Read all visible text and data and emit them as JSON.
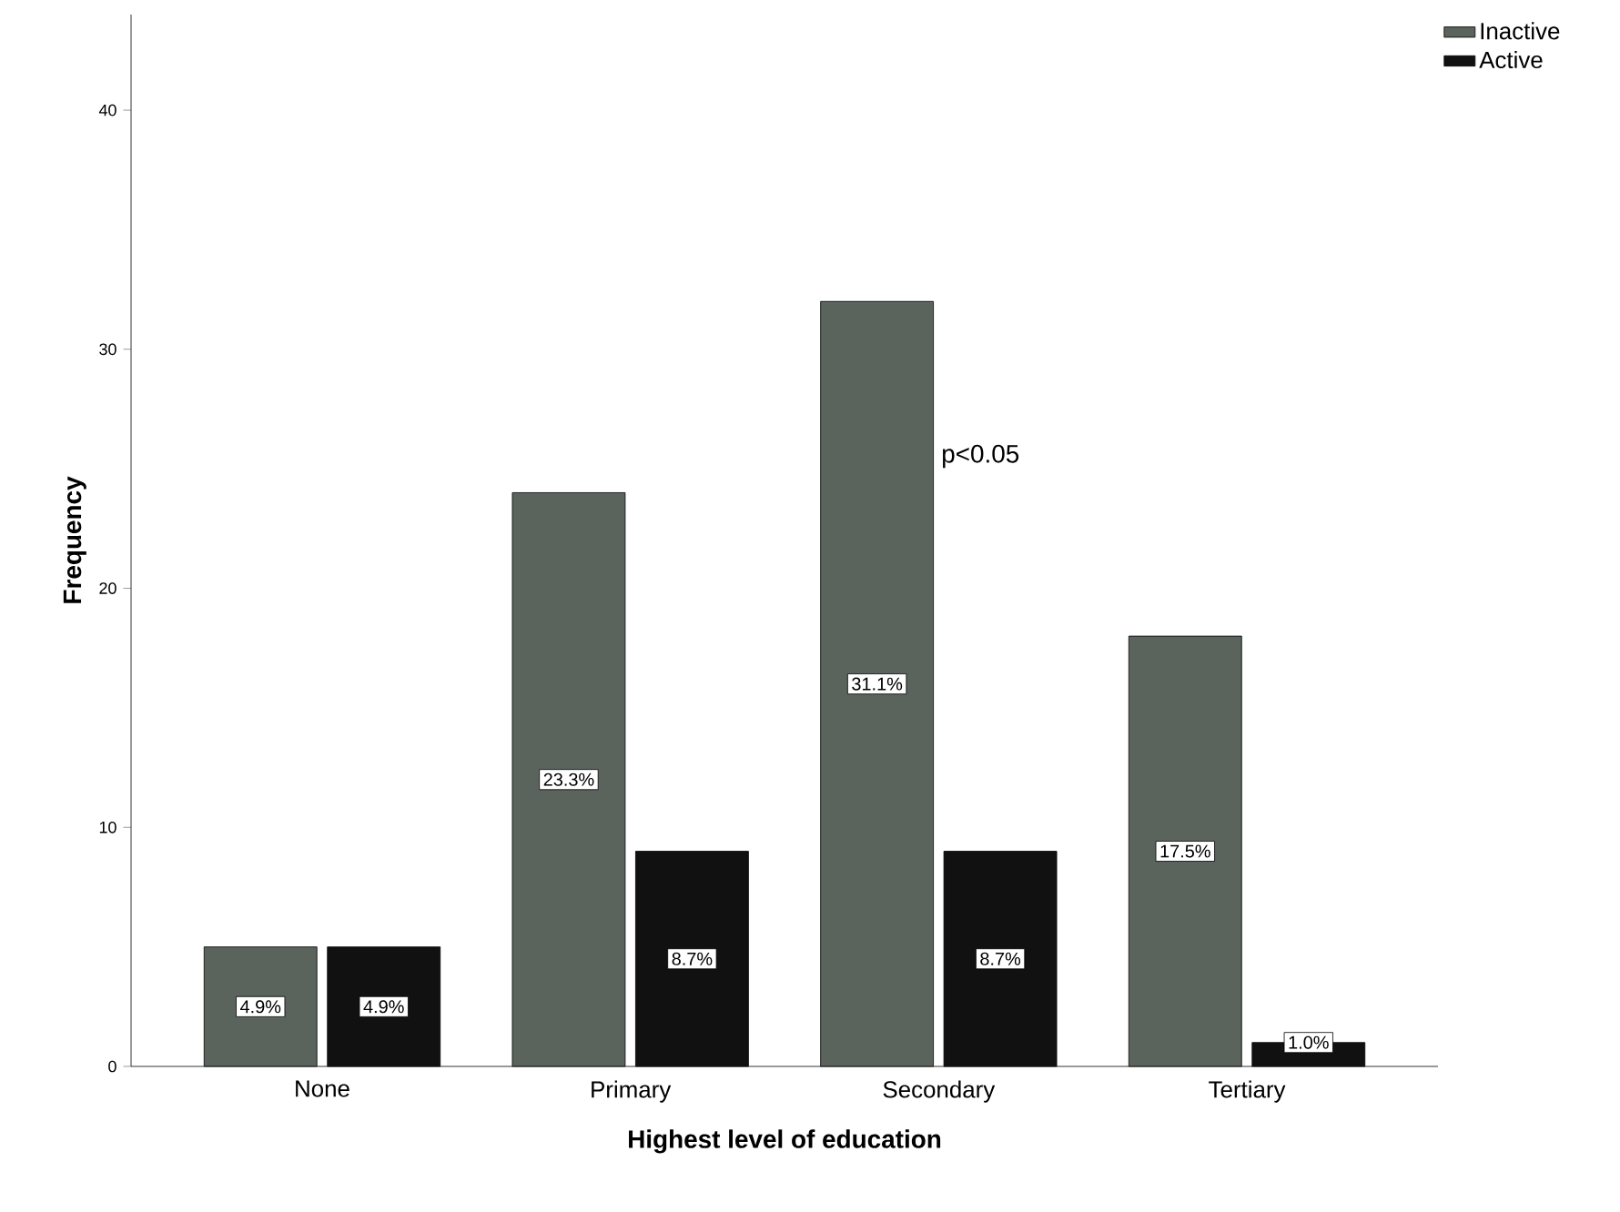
{
  "chart_data": {
    "type": "bar",
    "xlabel": "Highest level of education",
    "ylabel": "Frequency",
    "categories": [
      "None",
      "Primary",
      "Secondary",
      "Tertiary"
    ],
    "series": [
      {
        "name": "Inactive",
        "color": "#5a635c",
        "values": [
          5,
          24,
          32,
          18
        ]
      },
      {
        "name": "Active",
        "color": "#111111",
        "values": [
          5,
          9,
          9,
          1
        ]
      }
    ],
    "ylim": [
      0,
      44
    ],
    "yticks": [
      0,
      10,
      20,
      30,
      40
    ],
    "legend": "top right",
    "grid": false,
    "annotations": [
      "p<0.05",
      {
        "text": "4.9%",
        "x": "None",
        "y": 2.5
      },
      {
        "text": "23.3%",
        "x": "Primary",
        "y": 12
      },
      {
        "text": "31.1%",
        "x": "Secondary",
        "y": 16
      },
      {
        "text": "17.5%",
        "x": "Tertiary",
        "y": 9
      },
      {
        "text": "4.9%",
        "x": "None",
        "y": 2.5
      },
      {
        "text": "8.7%",
        "x": "Primary",
        "y": 4.5
      },
      {
        "text": "8.7%",
        "x": "Secondary",
        "y": 4.5
      },
      {
        "text": "1.0%",
        "x": "Tertiary",
        "y": 1
      }
    ]
  }
}
